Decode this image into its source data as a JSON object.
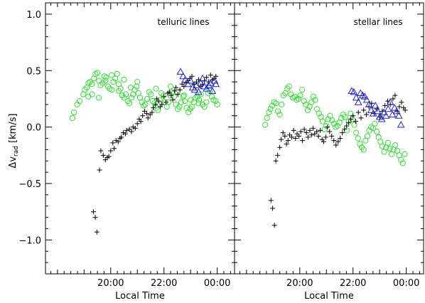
{
  "figure": {
    "ylabel_main": "Δv",
    "ylabel_sub": "rad",
    "ylabel_unit": " [km/s]",
    "colors": {
      "axes": "#000000",
      "green": "#33dd33",
      "blue": "#2222cc",
      "black": "#000000"
    }
  },
  "chart_data": [
    {
      "type": "scatter",
      "title": "telluric lines",
      "xlabel": "Local Time",
      "ylabel": "Δv_rad [km/s]",
      "xlim": [
        17.55,
        24.65
      ],
      "ylim": [
        -1.3,
        1.1
      ],
      "xticks": [
        {
          "v": 20,
          "label": "20:00"
        },
        {
          "v": 22,
          "label": "22:00"
        },
        {
          "v": 24,
          "label": "00:00"
        }
      ],
      "yticks": [
        {
          "v": 1.0,
          "label": "1.0"
        },
        {
          "v": 0.5,
          "label": "0.5"
        },
        {
          "v": 0.0,
          "label": "0.0"
        },
        {
          "v": -0.5,
          "label": "−0.5"
        },
        {
          "v": -1.0,
          "label": "−1.0"
        }
      ],
      "series": [
        {
          "marker": "circle",
          "color": "#33dd33",
          "x": [
            18.56,
            18.62,
            18.74,
            18.83,
            18.97,
            19.03,
            19.1,
            19.16,
            19.22,
            19.29,
            19.37,
            19.43,
            19.5,
            19.56,
            19.62,
            19.7,
            19.76,
            19.83,
            19.9,
            19.96,
            20.04,
            20.1,
            20.17,
            20.24,
            20.3,
            20.37,
            20.43,
            20.5,
            20.57,
            20.64,
            20.7,
            20.78,
            20.84,
            20.9,
            20.97,
            21.04,
            21.1,
            21.17,
            21.24,
            21.3,
            21.37,
            21.44,
            21.51,
            21.57,
            21.64,
            21.7,
            21.77,
            21.84,
            21.9,
            21.98,
            22.04,
            22.11,
            22.17,
            22.24,
            22.31,
            22.38,
            22.45,
            22.52,
            22.58,
            22.65,
            22.72,
            22.78,
            22.85,
            22.92,
            22.98,
            23.05,
            23.12,
            23.19,
            23.26,
            23.32,
            23.39,
            23.45,
            23.52,
            23.59,
            23.66,
            23.72,
            23.8,
            23.86,
            23.94,
            24.0,
            19.16,
            19.3,
            19.55,
            19.8,
            20.03,
            20.3,
            20.5,
            20.75,
            21.0,
            21.7,
            22.25,
            22.5,
            22.75,
            23.0,
            23.3
          ],
          "y": [
            0.08,
            0.13,
            0.2,
            0.23,
            0.29,
            0.33,
            0.35,
            0.39,
            0.4,
            0.38,
            0.43,
            0.47,
            0.48,
            0.41,
            0.37,
            0.39,
            0.45,
            0.44,
            0.36,
            0.34,
            0.33,
            0.4,
            0.43,
            0.47,
            0.32,
            0.34,
            0.28,
            0.26,
            0.29,
            0.23,
            0.21,
            0.26,
            0.29,
            0.33,
            0.36,
            0.3,
            0.26,
            0.22,
            0.19,
            0.2,
            0.25,
            0.31,
            0.29,
            0.23,
            0.21,
            0.17,
            0.15,
            0.24,
            0.3,
            0.28,
            0.22,
            0.18,
            0.22,
            0.28,
            0.31,
            0.27,
            0.2,
            0.16,
            0.18,
            0.22,
            0.27,
            0.23,
            0.17,
            0.13,
            0.16,
            0.18,
            0.22,
            0.26,
            0.27,
            0.24,
            0.29,
            0.2,
            0.18,
            0.22,
            0.3,
            0.32,
            0.27,
            0.24,
            0.23,
            0.2,
            0.27,
            0.29,
            0.26,
            0.41,
            0.46,
            0.38,
            0.42,
            0.35,
            0.4,
            0.34,
            0.36,
            0.31,
            0.28,
            0.24,
            0.21
          ]
        },
        {
          "marker": "plus",
          "color": "#000000",
          "x": [
            19.35,
            19.42,
            19.48,
            19.58,
            19.63,
            19.72,
            19.8,
            19.87,
            19.93,
            20.0,
            20.08,
            20.13,
            20.2,
            20.28,
            20.35,
            20.4,
            20.47,
            20.55,
            20.6,
            20.7,
            20.78,
            20.84,
            20.92,
            21.0,
            21.07,
            21.13,
            21.2,
            21.27,
            21.35,
            21.4,
            21.48,
            21.55,
            21.6,
            21.68,
            21.73,
            21.8,
            21.86,
            21.92,
            22.0,
            22.07,
            22.14,
            22.2,
            22.27,
            22.33,
            22.4,
            22.45,
            22.52,
            22.6,
            22.68,
            22.75,
            22.83,
            22.9,
            22.97,
            23.05,
            23.13,
            23.22,
            23.3,
            23.38,
            23.45,
            23.52,
            23.6,
            23.68,
            23.75,
            23.82,
            23.88,
            23.95
          ],
          "y": [
            -0.75,
            -0.8,
            -0.93,
            -0.38,
            -0.21,
            -0.25,
            -0.29,
            -0.27,
            -0.26,
            -0.21,
            -0.14,
            -0.19,
            -0.12,
            -0.13,
            -0.1,
            -0.09,
            -0.05,
            -0.06,
            -0.03,
            -0.02,
            -0.04,
            0.0,
            -0.01,
            0.03,
            0.07,
            0.05,
            0.1,
            0.14,
            0.12,
            0.08,
            0.11,
            0.13,
            0.17,
            0.2,
            0.25,
            0.23,
            0.18,
            0.2,
            0.27,
            0.22,
            0.3,
            0.31,
            0.28,
            0.24,
            0.32,
            0.35,
            0.29,
            0.33,
            0.38,
            0.36,
            0.39,
            0.41,
            0.43,
            0.45,
            0.38,
            0.4,
            0.42,
            0.36,
            0.38,
            0.41,
            0.44,
            0.4,
            0.46,
            0.42,
            0.43,
            0.45
          ]
        },
        {
          "marker": "triangle",
          "color": "#2222cc",
          "x": [
            22.62,
            22.72,
            22.8,
            22.9,
            23.0,
            23.08,
            23.15,
            23.22,
            23.3,
            23.38,
            23.45,
            23.52,
            23.6,
            23.68,
            23.75,
            23.82,
            23.9,
            23.95
          ],
          "y": [
            0.49,
            0.45,
            0.42,
            0.38,
            0.41,
            0.35,
            0.33,
            0.37,
            0.31,
            0.39,
            0.43,
            0.36,
            0.34,
            0.37,
            0.39,
            0.32,
            0.41,
            0.38
          ]
        }
      ]
    },
    {
      "type": "scatter",
      "title": "stellar lines",
      "xlabel": "Local Time",
      "ylabel": "",
      "xlim": [
        17.55,
        24.65
      ],
      "ylim": [
        -1.3,
        1.1
      ],
      "xticks": [
        {
          "v": 20,
          "label": "20:00"
        },
        {
          "v": 22,
          "label": "22:00"
        },
        {
          "v": 24,
          "label": "00:00"
        }
      ],
      "series": [
        {
          "marker": "circle",
          "color": "#33dd33",
          "x": [
            18.7,
            18.77,
            18.84,
            18.9,
            18.97,
            19.04,
            19.11,
            19.18,
            19.25,
            19.32,
            19.39,
            19.46,
            19.53,
            19.6,
            19.67,
            19.74,
            19.81,
            19.88,
            19.95,
            20.02,
            20.09,
            20.16,
            20.23,
            20.3,
            20.37,
            20.44,
            20.51,
            20.58,
            20.65,
            20.72,
            20.79,
            20.86,
            20.93,
            21.0,
            21.07,
            21.14,
            21.21,
            21.28,
            21.35,
            21.42,
            21.49,
            21.56,
            21.63,
            21.7,
            21.77,
            21.84,
            21.91,
            21.98,
            22.05,
            22.12,
            22.19,
            22.26,
            22.33,
            22.4,
            22.47,
            22.54,
            22.61,
            22.68,
            22.75,
            22.82,
            22.89,
            22.96,
            23.03,
            23.1,
            23.17,
            23.24,
            23.31,
            23.38,
            23.45,
            23.52,
            23.59,
            23.66,
            23.73,
            23.8,
            23.87,
            23.94
          ],
          "y": [
            0.02,
            0.08,
            0.13,
            0.16,
            0.19,
            0.22,
            0.21,
            0.14,
            0.11,
            0.2,
            0.28,
            0.3,
            0.34,
            0.36,
            0.29,
            0.26,
            0.27,
            0.24,
            0.25,
            0.28,
            0.33,
            0.23,
            0.2,
            0.15,
            0.18,
            0.22,
            0.27,
            0.24,
            0.16,
            0.12,
            0.09,
            0.05,
            -0.02,
            0.01,
            0.07,
            0.1,
            0.06,
            0.03,
            0.0,
            0.01,
            0.04,
            0.08,
            0.11,
            0.09,
            -0.03,
            0.05,
            0.12,
            0.07,
            0.02,
            -0.05,
            -0.1,
            -0.15,
            -0.18,
            -0.2,
            -0.12,
            -0.08,
            -0.03,
            0.0,
            -0.01,
            0.03,
            -0.04,
            -0.09,
            -0.13,
            -0.17,
            -0.22,
            -0.18,
            -0.14,
            -0.19,
            -0.24,
            -0.2,
            -0.16,
            -0.21,
            -0.25,
            -0.29,
            -0.32,
            -0.24
          ]
        },
        {
          "marker": "plus",
          "color": "#000000",
          "x": [
            18.92,
            18.98,
            19.05,
            19.1,
            19.17,
            19.25,
            19.3,
            19.37,
            19.44,
            19.5,
            19.56,
            19.62,
            19.7,
            19.77,
            19.84,
            19.9,
            19.97,
            20.04,
            20.1,
            20.17,
            20.25,
            20.31,
            20.38,
            20.44,
            20.5,
            20.56,
            20.64,
            20.7,
            20.77,
            20.84,
            20.9,
            20.98,
            21.04,
            21.12,
            21.2,
            21.28,
            21.36,
            21.44,
            21.52,
            21.6,
            21.68,
            21.76,
            21.84,
            21.92,
            22.0,
            22.1,
            22.2,
            22.3,
            22.4,
            22.5,
            22.6,
            22.7,
            22.8,
            22.9,
            23.0,
            23.1,
            23.2,
            23.3,
            23.4,
            23.5,
            23.58,
            23.66,
            23.74,
            23.82,
            23.9,
            23.96
          ],
          "y": [
            -0.65,
            -0.72,
            -0.87,
            -0.3,
            -0.25,
            -0.18,
            -0.11,
            -0.05,
            -0.08,
            -0.15,
            -0.12,
            -0.07,
            -0.09,
            -0.03,
            -0.1,
            -0.06,
            -0.08,
            -0.04,
            -0.12,
            -0.02,
            -0.05,
            -0.09,
            -0.03,
            -0.07,
            -0.01,
            -0.06,
            -0.04,
            -0.08,
            -0.03,
            -0.11,
            -0.13,
            -0.09,
            0.0,
            -0.04,
            -0.08,
            -0.12,
            -0.16,
            -0.13,
            -0.1,
            -0.05,
            -0.02,
            0.01,
            0.04,
            0.07,
            0.1,
            0.05,
            0.13,
            0.08,
            0.15,
            0.11,
            0.18,
            0.21,
            0.12,
            0.16,
            0.09,
            0.14,
            0.19,
            0.23,
            0.2,
            0.25,
            0.28,
            0.14,
            0.18,
            0.22,
            0.17,
            0.15
          ]
        },
        {
          "marker": "triangle",
          "color": "#2222cc",
          "x": [
            21.95,
            22.03,
            22.12,
            22.2,
            22.28,
            22.36,
            22.44,
            22.52,
            22.6,
            22.68,
            22.76,
            22.84,
            22.92,
            23.0,
            23.08,
            23.16,
            23.24,
            23.32,
            23.4,
            23.48,
            23.56,
            23.64,
            23.72,
            23.8
          ],
          "y": [
            0.32,
            0.31,
            0.26,
            0.22,
            0.3,
            0.28,
            0.27,
            0.24,
            0.2,
            0.15,
            0.12,
            0.19,
            0.14,
            0.09,
            0.07,
            0.13,
            0.1,
            0.16,
            0.22,
            0.11,
            0.17,
            0.14,
            0.1,
            0.02
          ]
        }
      ]
    }
  ]
}
